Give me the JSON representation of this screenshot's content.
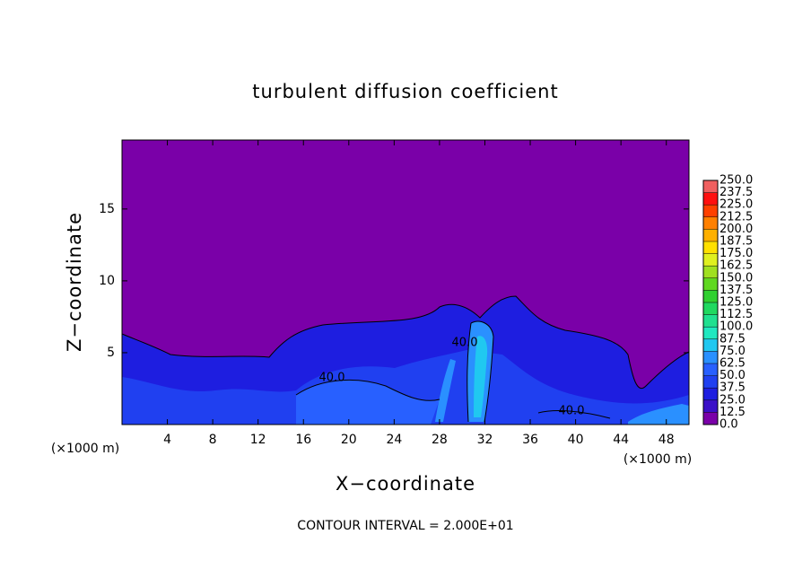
{
  "chart_data": {
    "type": "contour",
    "title": "turbulent diffusion coefficient",
    "xlabel": "X−coordinate",
    "ylabel": "Z−coordinate",
    "xunit": "(×1000 m)",
    "footer": "CONTOUR INTERVAL = 2.000E+01",
    "annotations": [
      "40.0",
      "40.0",
      "40.0"
    ],
    "xlim": [
      0,
      50
    ],
    "xticks": [
      4,
      8,
      12,
      16,
      20,
      24,
      28,
      32,
      36,
      40,
      44,
      48
    ],
    "ylim": [
      0,
      19.8
    ],
    "yticks": [
      5,
      10,
      15
    ],
    "background": "#7a00a8",
    "colorbar": {
      "ticks": [
        {
          "value": 0,
          "label": "0.0"
        },
        {
          "value": 12.5,
          "label": "12.5"
        },
        {
          "value": 25,
          "label": "25.0"
        },
        {
          "value": 37.5,
          "label": "37.5"
        },
        {
          "value": 50,
          "label": "50.0"
        },
        {
          "value": 62.5,
          "label": "62.5"
        },
        {
          "value": 75,
          "label": "75.0"
        },
        {
          "value": 87.5,
          "label": "87.5"
        },
        {
          "value": 100,
          "label": "100.0"
        },
        {
          "value": 112.5,
          "label": "112.5"
        },
        {
          "value": 125,
          "label": "125.0"
        },
        {
          "value": 137.5,
          "label": "137.5"
        },
        {
          "value": 150,
          "label": "150.0"
        },
        {
          "value": 162.5,
          "label": "162.5"
        },
        {
          "value": 175,
          "label": "175.0"
        },
        {
          "value": 187.5,
          "label": "187.5"
        },
        {
          "value": 200,
          "label": "200.0"
        },
        {
          "value": 212.5,
          "label": "212.5"
        },
        {
          "value": 225,
          "label": "225.0"
        },
        {
          "value": 237.5,
          "label": "237.5"
        },
        {
          "value": 250,
          "label": "250.0"
        }
      ],
      "colors": [
        "#7a00a8",
        "#3a10c8",
        "#1e1ee0",
        "#2040f0",
        "#2860ff",
        "#2a90ff",
        "#20c8f0",
        "#20e8c0",
        "#20e090",
        "#20d860",
        "#30d030",
        "#60d820",
        "#a0e020",
        "#e0f020",
        "#ffe000",
        "#ffb000",
        "#ff8000",
        "#ff4000",
        "#ff1010",
        "#f06060"
      ]
    }
  }
}
